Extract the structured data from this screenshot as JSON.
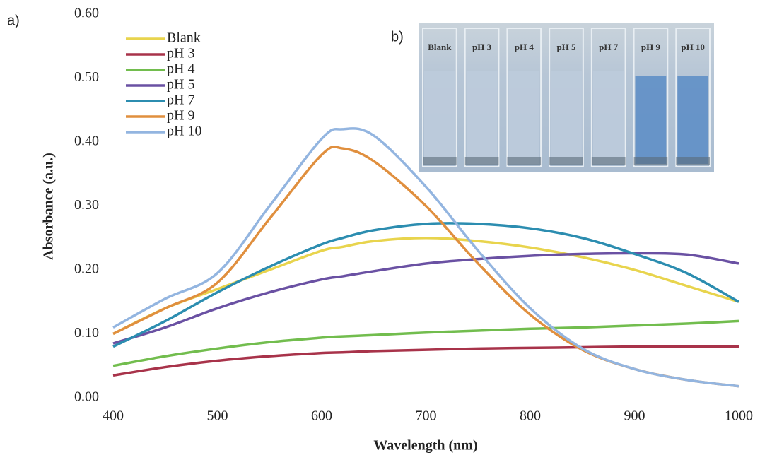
{
  "chart_data": {
    "type": "line",
    "panel_label": "a)",
    "x_label": "Wavelength (nm)",
    "y_label": "Absorbance (a.u.)",
    "x": [
      400,
      450,
      500,
      550,
      600,
      620,
      650,
      700,
      750,
      800,
      850,
      900,
      950,
      1000
    ],
    "series": [
      {
        "name": "Blank",
        "color": "#e8d44d",
        "values": [
          0.1,
          0.14,
          0.17,
          0.2,
          0.23,
          0.236,
          0.245,
          0.25,
          0.245,
          0.235,
          0.22,
          0.2,
          0.175,
          0.15
        ]
      },
      {
        "name": "pH 3",
        "color": "#a8334a",
        "values": [
          0.035,
          0.048,
          0.058,
          0.065,
          0.07,
          0.071,
          0.073,
          0.075,
          0.077,
          0.078,
          0.079,
          0.08,
          0.08,
          0.08
        ]
      },
      {
        "name": "pH 4",
        "color": "#72bd4e",
        "values": [
          0.05,
          0.065,
          0.077,
          0.087,
          0.094,
          0.096,
          0.098,
          0.102,
          0.105,
          0.108,
          0.11,
          0.113,
          0.116,
          0.12
        ]
      },
      {
        "name": "pH 5",
        "color": "#6a51a3",
        "values": [
          0.085,
          0.11,
          0.14,
          0.165,
          0.185,
          0.19,
          0.198,
          0.21,
          0.217,
          0.222,
          0.225,
          0.226,
          0.224,
          0.21
        ]
      },
      {
        "name": "pH 7",
        "color": "#2c8db0",
        "values": [
          0.08,
          0.12,
          0.165,
          0.205,
          0.24,
          0.25,
          0.262,
          0.272,
          0.272,
          0.265,
          0.25,
          0.225,
          0.195,
          0.15
        ]
      },
      {
        "name": "pH 9",
        "color": "#e08f3e",
        "values": [
          0.1,
          0.14,
          0.18,
          0.28,
          0.38,
          0.39,
          0.37,
          0.3,
          0.21,
          0.13,
          0.075,
          0.045,
          0.028,
          0.018
        ]
      },
      {
        "name": "pH 10",
        "color": "#93b5e0",
        "values": [
          0.11,
          0.155,
          0.195,
          0.3,
          0.405,
          0.42,
          0.41,
          0.33,
          0.23,
          0.14,
          0.077,
          0.045,
          0.028,
          0.018
        ]
      }
    ],
    "xlim": [
      400,
      1000
    ],
    "xticks": [
      400,
      500,
      600,
      700,
      800,
      900,
      1000
    ],
    "ylim": [
      0,
      0.6
    ],
    "yticks": [
      {
        "value": 0,
        "label": "0.00"
      },
      {
        "value": 0.1,
        "label": "0.10"
      },
      {
        "value": 0.2,
        "label": "0.20"
      },
      {
        "value": 0.3,
        "label": "0.30"
      },
      {
        "value": 0.4,
        "label": "0.40"
      },
      {
        "value": 0.5,
        "label": "0.50"
      },
      {
        "value": 0.6,
        "label": "0.60"
      }
    ],
    "legend": "top-left",
    "grid": false,
    "inset": {
      "label": "b)",
      "cuvettes": [
        "Blank",
        "pH 3",
        "pH 4",
        "pH 5",
        "pH 7",
        "pH 9",
        "pH 10"
      ]
    }
  }
}
